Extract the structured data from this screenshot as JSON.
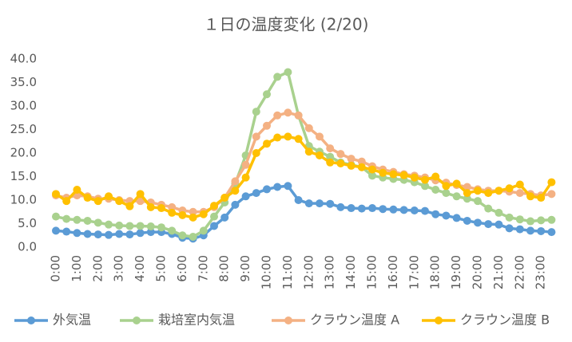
{
  "chart_data": {
    "type": "line",
    "title": "１日の温度変化 (2/20)",
    "categories": [
      "0:00",
      null,
      "1:00",
      null,
      "2:00",
      null,
      "3:00",
      null,
      "4:00",
      null,
      "5:00",
      null,
      "6:00",
      null,
      "7:00",
      null,
      "8:00",
      null,
      "9:00",
      null,
      "10:00",
      null,
      "11:00",
      null,
      "12:00",
      null,
      "13:00",
      null,
      "14:00",
      null,
      "15:00",
      null,
      "16:00",
      null,
      "17:00",
      null,
      "18:00",
      null,
      "19:00",
      null,
      "20:00",
      null,
      "21:00",
      null,
      "22:00",
      null,
      "23:00",
      null
    ],
    "ylim": [
      0,
      40
    ],
    "yticks": [
      {
        "value": 0,
        "label": "0.0"
      },
      {
        "value": 5,
        "label": "5.0"
      },
      {
        "value": 10,
        "label": "10.0"
      },
      {
        "value": 15,
        "label": "15.0"
      },
      {
        "value": 20,
        "label": "20.0"
      },
      {
        "value": 25,
        "label": "25.0"
      },
      {
        "value": 30,
        "label": "30.0"
      },
      {
        "value": 35,
        "label": "35.0"
      },
      {
        "value": 40,
        "label": "40.0"
      }
    ],
    "grid": false,
    "legend": "bottom",
    "series": [
      {
        "name": "外気温",
        "color": "#5b9bd5",
        "values": [
          3.5,
          3.3,
          3.0,
          2.8,
          2.7,
          2.6,
          2.8,
          2.7,
          3.0,
          3.2,
          3.2,
          2.8,
          2.0,
          1.8,
          2.5,
          4.5,
          6.3,
          9.0,
          10.8,
          11.5,
          12.3,
          12.8,
          13.0,
          10.0,
          9.3,
          9.3,
          9.2,
          8.5,
          8.3,
          8.2,
          8.3,
          8.1,
          8.0,
          7.9,
          7.8,
          7.7,
          7.0,
          6.7,
          6.2,
          5.6,
          5.2,
          4.9,
          4.8,
          4.0,
          3.8,
          3.5,
          3.4,
          3.2
        ]
      },
      {
        "name": "栽培室内気温",
        "color": "#a9d18e",
        "values": [
          6.5,
          6.0,
          5.8,
          5.6,
          5.2,
          4.8,
          4.6,
          4.5,
          4.5,
          4.4,
          4.2,
          3.5,
          2.5,
          2.2,
          3.5,
          6.5,
          9.5,
          13.5,
          19.5,
          28.8,
          32.5,
          36.2,
          37.2,
          28.0,
          21.5,
          20.3,
          19.2,
          18.0,
          17.5,
          17.0,
          15.2,
          14.8,
          14.5,
          14.3,
          13.8,
          13.0,
          12.2,
          11.5,
          10.8,
          10.3,
          9.8,
          8.2,
          7.3,
          6.3,
          5.9,
          5.5,
          5.7,
          5.8
        ]
      },
      {
        "name": "クラウン温度 A",
        "color": "#f4b183",
        "values": [
          11.0,
          10.5,
          11.0,
          10.8,
          10.3,
          10.3,
          10.0,
          9.8,
          9.8,
          9.5,
          9.0,
          8.5,
          7.8,
          7.5,
          7.5,
          8.5,
          10.5,
          14.0,
          17.5,
          23.5,
          25.8,
          28.0,
          28.6,
          28.0,
          25.3,
          23.5,
          21.0,
          19.8,
          18.8,
          18.2,
          17.2,
          16.5,
          16.0,
          15.5,
          15.2,
          14.8,
          14.2,
          13.7,
          13.2,
          12.8,
          12.3,
          12.0,
          12.0,
          11.8,
          11.5,
          11.3,
          11.0,
          11.3
        ]
      },
      {
        "name": "クラウン温度 B",
        "color": "#ffc000",
        "values": [
          11.3,
          9.8,
          12.2,
          10.5,
          9.8,
          10.8,
          9.8,
          8.7,
          11.3,
          8.5,
          8.3,
          7.3,
          6.8,
          6.3,
          7.0,
          8.8,
          10.5,
          12.0,
          14.8,
          20.0,
          22.0,
          23.3,
          23.5,
          23.0,
          20.3,
          19.5,
          18.0,
          17.8,
          17.3,
          17.0,
          16.5,
          15.8,
          15.5,
          15.3,
          14.8,
          14.3,
          15.0,
          13.0,
          13.5,
          11.5,
          12.0,
          11.5,
          12.0,
          12.5,
          13.3,
          10.8,
          10.5,
          13.8
        ]
      }
    ]
  }
}
